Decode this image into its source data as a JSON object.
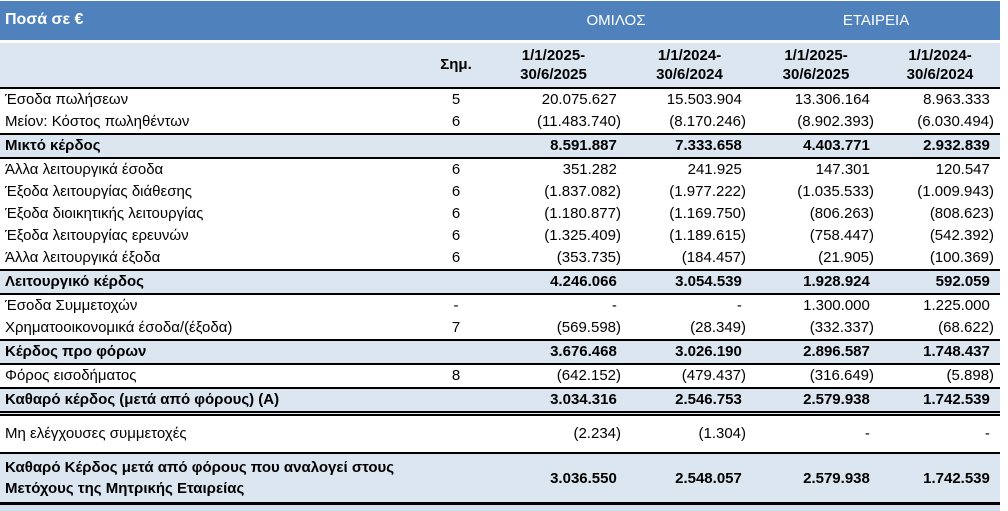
{
  "header": {
    "unit_label": "Ποσά σε €",
    "group": "ΟΜΙΛΟΣ",
    "company": "ΕΤΑΙΡΕΙΑ",
    "note": "Σημ.",
    "periods": [
      {
        "l1": "1/1/2025-",
        "l2": "30/6/2025"
      },
      {
        "l1": "1/1/2024-",
        "l2": "30/6/2024"
      },
      {
        "l1": "1/1/2025-",
        "l2": "30/6/2025"
      },
      {
        "l1": "1/1/2024-",
        "l2": "30/6/2024"
      }
    ]
  },
  "colors": {
    "band_blue": "#4F81BD",
    "highlight_blue": "#DCE6F1",
    "border_black": "#000000",
    "text_white": "#FFFFFF"
  },
  "rows": [
    {
      "label": "Έσοδα πωλήσεων",
      "note": "5",
      "values": [
        "20.075.627",
        "15.503.904",
        "13.306.164",
        "8.963.333"
      ],
      "style": "plain"
    },
    {
      "label": "Μείον: Κόστος πωληθέντων",
      "note": "6",
      "values": [
        "(11.483.740)",
        "(8.170.246)",
        "(8.902.393)",
        "(6.030.494)"
      ],
      "style": "plain"
    },
    {
      "label": "Μικτό κέρδος",
      "note": "",
      "values": [
        "8.591.887",
        "7.333.658",
        "4.403.771",
        "2.932.839"
      ],
      "style": "subtotal"
    },
    {
      "label": "Άλλα λειτουργικά έσοδα",
      "note": "6",
      "values": [
        "351.282",
        "241.925",
        "147.301",
        "120.547"
      ],
      "style": "plain"
    },
    {
      "label": "Έξοδα λειτουργίας διάθεσης",
      "note": "6",
      "values": [
        "(1.837.082)",
        "(1.977.222)",
        "(1.035.533)",
        "(1.009.943)"
      ],
      "style": "plain"
    },
    {
      "label": "Έξοδα διοικητικής λειτουργίας",
      "note": "6",
      "values": [
        "(1.180.877)",
        "(1.169.750)",
        "(806.263)",
        "(808.623)"
      ],
      "style": "plain"
    },
    {
      "label": "Έξοδα λειτουργίας ερευνών",
      "note": "6",
      "values": [
        "(1.325.409)",
        "(1.189.615)",
        "(758.447)",
        "(542.392)"
      ],
      "style": "plain"
    },
    {
      "label": "Άλλα λειτουργικά έξοδα",
      "note": "6",
      "values": [
        "(353.735)",
        "(184.457)",
        "(21.905)",
        "(100.369)"
      ],
      "style": "plain"
    },
    {
      "label": "Λειτουργικό κέρδος",
      "note": "",
      "values": [
        "4.246.066",
        "3.054.539",
        "1.928.924",
        "592.059"
      ],
      "style": "subtotal"
    },
    {
      "label": "Έσοδα Συμμετοχών",
      "note": "-",
      "values": [
        "-",
        "-",
        "1.300.000",
        "1.225.000"
      ],
      "style": "plain"
    },
    {
      "label": "Χρηματοοικονομικά έσοδα/(έξοδα)",
      "note": "7",
      "values": [
        "(569.598)",
        "(28.349)",
        "(332.337)",
        "(68.622)"
      ],
      "style": "plain"
    },
    {
      "label": "Κέρδος προ φόρων",
      "note": "",
      "values": [
        "3.676.468",
        "3.026.190",
        "2.896.587",
        "1.748.437"
      ],
      "style": "subtotal"
    },
    {
      "label": "Φόρος εισοδήματος",
      "note": "8",
      "values": [
        "(642.152)",
        "(479.437)",
        "(316.649)",
        "(5.898)"
      ],
      "style": "plain"
    },
    {
      "label": "Καθαρό κέρδος (μετά από φόρους)  (Α)",
      "note": "",
      "values": [
        "3.034.316",
        "2.546.753",
        "2.579.938",
        "1.742.539"
      ],
      "style": "total-double"
    },
    {
      "label": "Μη ελέγχουσες συμμετοχές",
      "note": "",
      "values": [
        "(2.234)",
        "(1.304)",
        "-",
        "-"
      ],
      "style": "plain tall"
    },
    {
      "label": "Καθαρό Κέρδος μετά από φόρους που αναλογεί στους Μετόχους της Μητρικής Εταιρείας",
      "note": "",
      "values": [
        "3.036.550",
        "2.548.057",
        "2.579.938",
        "1.742.539"
      ],
      "style": "final"
    }
  ]
}
